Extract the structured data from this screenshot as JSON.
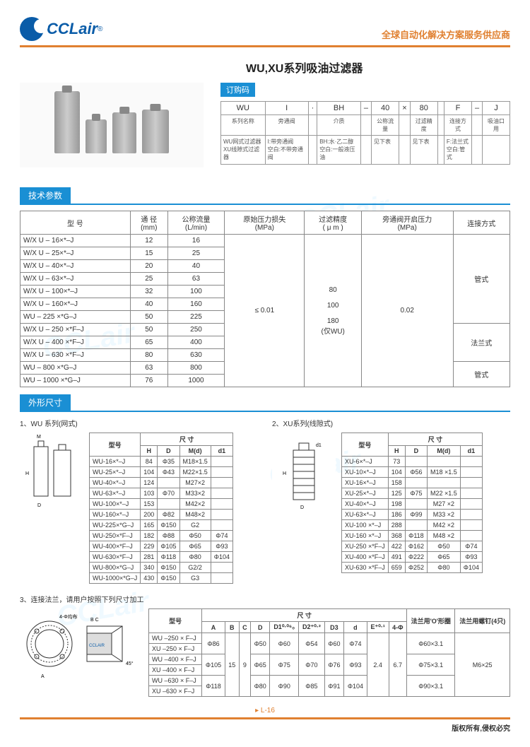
{
  "brand": {
    "name": "CCLair",
    "reg": "®"
  },
  "header_right": "全球自动化解决方案服务供应商",
  "title": "WU,XU系列吸油过滤器",
  "order_header": "订购码",
  "order": {
    "codes": [
      "WU",
      "I",
      "·",
      "BH",
      "–",
      "40",
      "×",
      "80",
      "",
      "F",
      "–",
      "J"
    ],
    "labels": [
      "系列名称",
      "旁通阀",
      "",
      "介质",
      "",
      "公称流量",
      "",
      "过滤精度",
      "",
      "连接方式",
      "",
      "吸油口用"
    ],
    "desc": [
      "WU网式过滤器\nXU线隙式过滤器",
      "I:带旁通阀\n空白:不带旁通阀",
      "",
      "BH:水·乙二醇\n空白:一般液压油",
      "",
      "见下表",
      "",
      "见下表",
      "",
      "F:法兰式\n空白:管式",
      "",
      ""
    ]
  },
  "spec_header": "技术参数",
  "spec_cols": [
    "型 号",
    "通 径\n(mm)",
    "公称流量\n(L/min)",
    "原始压力损失\n(MPa)",
    "过滤精度\n( μ m )",
    "旁通阀开启压力\n(MPa)",
    "连接方式"
  ],
  "spec_rows": [
    {
      "m": "W/X U – 16×*–J",
      "d": "12",
      "f": "16"
    },
    {
      "m": "W/X U – 25×*–J",
      "d": "15",
      "f": "25"
    },
    {
      "m": "W/X U – 40×*–J",
      "d": "20",
      "f": "40"
    },
    {
      "m": "W/X U – 63×*–J",
      "d": "25",
      "f": "63"
    },
    {
      "m": "W/X U – 100×*–J",
      "d": "32",
      "f": "100"
    },
    {
      "m": "W/X U – 160×*–J",
      "d": "40",
      "f": "160"
    },
    {
      "m": "WU – 225 ×*G–J",
      "d": "50",
      "f": "225"
    },
    {
      "m": "W/X U – 250 ×*F–J",
      "d": "50",
      "f": "250"
    },
    {
      "m": "W/X U – 400 ×*F–J",
      "d": "65",
      "f": "400"
    },
    {
      "m": "W/X U – 630 ×*F–J",
      "d": "80",
      "f": "630"
    },
    {
      "m": "WU – 800 ×*G–J",
      "d": "63",
      "f": "800"
    },
    {
      "m": "WU – 1000 ×*G–J",
      "d": "76",
      "f": "1000"
    }
  ],
  "spec_merged": {
    "loss": "≤ 0.01",
    "precision": "80\n\n100\n\n180\n(仅WU)",
    "bypass": "0.02",
    "conn1": "管式",
    "conn2": "法兰式",
    "conn3": "管式"
  },
  "dims_header": "外形尺寸",
  "wu_title": "1、WU 系列(网式)",
  "xu_title": "2、XU系列(线隙式)",
  "dim_cols": [
    "型号",
    "H",
    "D",
    "M(d)",
    "d1"
  ],
  "dim_subhdr": "尺 寸",
  "wu_rows": [
    [
      "WU-16×*–J",
      "84",
      "Φ35",
      "M18×1.5",
      ""
    ],
    [
      "WU-25×*–J",
      "104",
      "Φ43",
      "M22×1.5",
      ""
    ],
    [
      "WU-40×*–J",
      "124",
      "",
      "M27×2",
      ""
    ],
    [
      "WU-63×*–J",
      "103",
      "Φ70",
      "M33×2",
      ""
    ],
    [
      "WU-100×*–J",
      "153",
      "",
      "M42×2",
      ""
    ],
    [
      "WU-160×*–J",
      "200",
      "Φ82",
      "M48×2",
      ""
    ],
    [
      "WU-225×*G–J",
      "165",
      "Φ150",
      "G2",
      ""
    ],
    [
      "WU-250×*F–J",
      "182",
      "Φ88",
      "Φ50",
      "Φ74"
    ],
    [
      "WU-400×*F–J",
      "229",
      "Φ105",
      "Φ65",
      "Φ93"
    ],
    [
      "WU-630×*F–J",
      "281",
      "Φ118",
      "Φ80",
      "Φ104"
    ],
    [
      "WU-800×*G–J",
      "340",
      "Φ150",
      "G2/2",
      ""
    ],
    [
      "WU-1000×*G–J",
      "430",
      "Φ150",
      "G3",
      ""
    ]
  ],
  "xu_rows": [
    [
      "XU-6×*–J",
      "73",
      "",
      "",
      ""
    ],
    [
      "XU-10×*–J",
      "104",
      "Φ56",
      "M18 ×1.5",
      ""
    ],
    [
      "XU-16×*–J",
      "158",
      "",
      "",
      ""
    ],
    [
      "XU-25×*–J",
      "125",
      "Φ75",
      "M22 ×1.5",
      ""
    ],
    [
      "XU-40×*–J",
      "198",
      "",
      "M27 ×2",
      ""
    ],
    [
      "XU-63×*–J",
      "186",
      "Φ99",
      "M33 ×2",
      ""
    ],
    [
      "XU-100 ×*–J",
      "288",
      "",
      "M42 ×2",
      ""
    ],
    [
      "XU-160 ×*–J",
      "368",
      "Φ118",
      "M48 ×2",
      ""
    ],
    [
      "XU-250 ×*F–J",
      "422",
      "Φ162",
      "Φ50",
      "Φ74"
    ],
    [
      "XU-400 ×*F–J",
      "491",
      "Φ222",
      "Φ65",
      "Φ93"
    ],
    [
      "XU-630 ×*F–J",
      "659",
      "Φ252",
      "Φ80",
      "Φ104"
    ]
  ],
  "flange_title": "3、连接法兰，请用户按照下列尺寸加工",
  "flange_cols": [
    "型号",
    "A",
    "B",
    "C",
    "D",
    "D1⁰·⁰⁶₀",
    "D2⁺⁰·²",
    "D3",
    "d",
    "E⁺⁰·¹",
    "4-Φ",
    "法兰用'O'形圈",
    "法兰用螺钉(4只)"
  ],
  "flange_subhdr": "尺 寸",
  "flange_rows": [
    {
      "m1": "WU –250 × F–J",
      "m2": "XU –250 × F–J",
      "a": "Φ86",
      "b": "15",
      "c": "9",
      "d": "Φ50",
      "d1": "Φ60",
      "d2": "Φ54",
      "d3": "Φ60",
      "dd": "Φ74",
      "e": "2.4",
      "p": "6.7",
      "o": "Φ60×3.1",
      "s": "M6×25"
    },
    {
      "m1": "WU –400 × F–J",
      "m2": "XU –400 × F–J",
      "a": "Φ105",
      "b": "",
      "c": "",
      "d": "Φ65",
      "d1": "Φ75",
      "d2": "Φ70",
      "d3": "Φ76",
      "dd": "Φ93",
      "e": "",
      "p": "",
      "o": "Φ75×3.1",
      "s": ""
    },
    {
      "m1": "WU –630 × F–J",
      "m2": "XU –630 × F–J",
      "a": "Φ118",
      "b": "",
      "c": "",
      "d": "Φ80",
      "d1": "Φ90",
      "d2": "Φ85",
      "d3": "Φ91",
      "dd": "Φ104",
      "e": "",
      "p": "",
      "o": "Φ90×3.1",
      "s": ""
    }
  ],
  "page_num": "L-16",
  "copyright": "版权所有,侵权必究",
  "colors": {
    "blue": "#1a8fd4",
    "orange": "#e08030",
    "dblue": "#0a5ca8"
  }
}
